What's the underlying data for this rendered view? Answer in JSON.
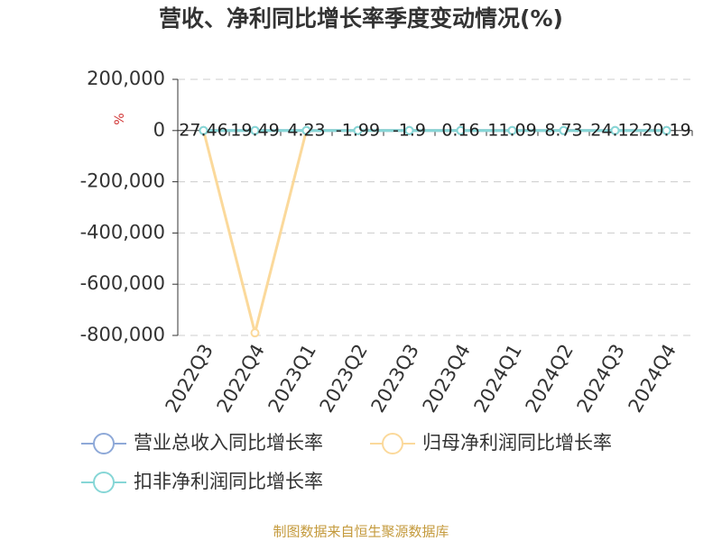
{
  "chart_data": {
    "type": "line",
    "title": "营收、净利同比增长率季度变动情况(%)",
    "y_axis_label": "%",
    "source": "制图数据来自恒生聚源数据库",
    "categories": [
      "2022Q3",
      "2022Q4",
      "2023Q1",
      "2023Q2",
      "2023Q3",
      "2023Q4",
      "2024Q1",
      "2024Q2",
      "2024Q3",
      "2024Q4"
    ],
    "series": [
      {
        "name": "营业总收入同比增长率",
        "color": "#8ea9d8",
        "values": [
          27.46,
          19.49,
          4.23,
          -1.99,
          -1.9,
          0.16,
          11.09,
          8.73,
          24.12,
          20.19
        ],
        "show_labels": true
      },
      {
        "name": "归母净利润同比增长率",
        "color": "#fbd99b",
        "values": [
          0,
          -790000,
          0,
          0,
          0,
          0,
          0,
          0,
          0,
          0
        ]
      },
      {
        "name": "扣非净利润同比增长率",
        "color": "#86d6d6",
        "values": [
          0,
          0,
          0,
          0,
          0,
          0,
          0,
          0,
          0,
          0
        ]
      }
    ],
    "ylim": [
      -800000,
      200000
    ],
    "yticks": [
      {
        "value": -800000,
        "label": "-800,000"
      },
      {
        "value": -600000,
        "label": "-600,000"
      },
      {
        "value": -400000,
        "label": "-400,000"
      },
      {
        "value": -200000,
        "label": "-200,000"
      },
      0,
      {
        "value": 200000,
        "label": "200,000"
      }
    ],
    "grid": true
  }
}
